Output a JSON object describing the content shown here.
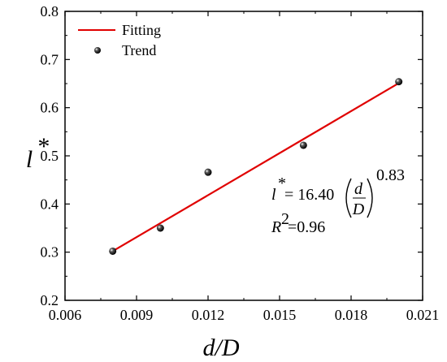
{
  "chart_data": {
    "type": "scatter",
    "xlabel_main": "d/D",
    "ylabel_main": "l",
    "ylabel_sup": "*",
    "xlim": [
      0.006,
      0.021
    ],
    "ylim": [
      0.2,
      0.8
    ],
    "x_ticks": [
      "0.006",
      "0.009",
      "0.012",
      "0.015",
      "0.018",
      "0.021"
    ],
    "y_ticks": [
      "0.2",
      "0.3",
      "0.4",
      "0.5",
      "0.6",
      "0.7",
      "0.8"
    ],
    "series": [
      {
        "name": "Trend",
        "kind": "scatter",
        "color": "#000000",
        "points": [
          {
            "x": 0.008,
            "y": 0.302
          },
          {
            "x": 0.01,
            "y": 0.35
          },
          {
            "x": 0.012,
            "y": 0.466
          },
          {
            "x": 0.016,
            "y": 0.522
          },
          {
            "x": 0.02,
            "y": 0.654
          }
        ]
      },
      {
        "name": "Fitting",
        "kind": "line",
        "color": "#e00000",
        "points": [
          {
            "x": 0.008,
            "y": 0.302
          },
          {
            "x": 0.02,
            "y": 0.651
          }
        ]
      }
    ],
    "legend": {
      "placement": "top-left",
      "entries": [
        "Fitting",
        "Trend"
      ]
    },
    "annotation": {
      "lhs": "l",
      "lhs_sup": "*",
      "equals_coeff": "= 16.40",
      "frac_num": "d",
      "frac_den": "D",
      "exponent": "0.83",
      "r2_label": "R",
      "r2_sup": "2",
      "r2_value": "=0.96"
    }
  }
}
